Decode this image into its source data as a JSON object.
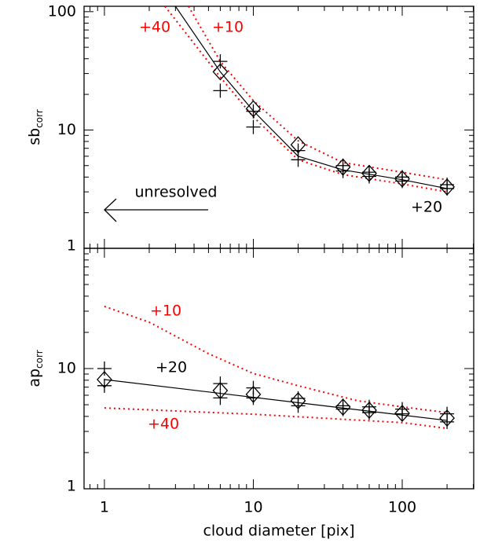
{
  "chart_data": [
    {
      "type": "line",
      "log_x": true,
      "log_y": true,
      "ylabel": "sb",
      "ylabel_sub": "corr",
      "xlim": [
        0.73,
        302
      ],
      "ylim": [
        1,
        111
      ],
      "yticks": [
        1,
        10,
        100
      ],
      "annotations": [
        {
          "text": "+40",
          "color": "#ff0000"
        },
        {
          "text": "+10",
          "color": "#ff0000"
        },
        {
          "text": "+20",
          "color": "#000000"
        },
        {
          "text": "unresolved",
          "color": "#000000"
        }
      ],
      "series": [
        {
          "style": "solid",
          "color": "#000000",
          "x": [
            3,
            6,
            10,
            20,
            40,
            100,
            200
          ],
          "values": [
            111,
            31,
            14.5,
            6,
            4.6,
            3.8,
            3.2
          ]
        },
        {
          "style": "dotted",
          "color": "#ff0000",
          "x": [
            3.67,
            6,
            10,
            20,
            40,
            100,
            200
          ],
          "values": [
            111,
            38,
            17.7,
            8.1,
            5.3,
            4.4,
            3.8
          ]
        },
        {
          "style": "dotted",
          "color": "#ff0000",
          "x": [
            2.55,
            6,
            10,
            20,
            40,
            100,
            200
          ],
          "values": [
            111,
            28,
            12.9,
            5.6,
            4.2,
            3.5,
            3.0
          ]
        },
        {
          "style": "diamond",
          "color": "#000000",
          "x": [
            6,
            10,
            20,
            40,
            60,
            100,
            200
          ],
          "values": [
            31,
            15.1,
            7.5,
            4.86,
            4.3,
            3.86,
            3.3
          ]
        },
        {
          "style": "plus",
          "color": "#000000",
          "x": [
            6,
            10,
            20,
            40,
            60,
            100,
            200
          ],
          "values": [
            38,
            14.4,
            6.7,
            5.0,
            4.4,
            4.0,
            3.45
          ]
        },
        {
          "style": "plus",
          "color": "#000000",
          "x": [
            6,
            10,
            20,
            40,
            60,
            100,
            200
          ],
          "values": [
            21.5,
            10.6,
            5.6,
            4.5,
            4.05,
            3.7,
            3.2
          ]
        }
      ]
    },
    {
      "type": "line",
      "log_x": true,
      "log_y": true,
      "xlabel": "cloud diameter [pix]",
      "ylabel": "ap",
      "ylabel_sub": "corr",
      "xlim": [
        0.73,
        302
      ],
      "ylim": [
        1,
        100
      ],
      "xticks": [
        1,
        10,
        100
      ],
      "yticks": [
        1,
        10
      ],
      "annotations": [
        {
          "text": "+10",
          "color": "#ff0000"
        },
        {
          "text": "+20",
          "color": "#000000"
        },
        {
          "text": "+40",
          "color": "#ff0000"
        }
      ],
      "series": [
        {
          "style": "solid",
          "color": "#000000",
          "x": [
            1,
            200
          ],
          "values": [
            8.1,
            3.7
          ]
        },
        {
          "style": "dotted",
          "color": "#ff0000",
          "x": [
            1,
            2,
            5,
            10,
            20,
            50,
            100,
            200
          ],
          "values": [
            32.9,
            24.3,
            13.3,
            9.1,
            7.2,
            5.4,
            4.8,
            4.3
          ]
        },
        {
          "style": "dotted",
          "color": "#ff0000",
          "x": [
            1,
            10,
            100,
            200
          ],
          "values": [
            4.7,
            4.17,
            3.55,
            3.18
          ]
        },
        {
          "style": "diamond",
          "color": "#000000",
          "x": [
            1,
            6,
            10,
            20,
            40,
            60,
            100,
            200
          ],
          "values": [
            8.1,
            6.56,
            6.1,
            5.4,
            4.78,
            4.5,
            4.24,
            3.87
          ]
        },
        {
          "style": "plus",
          "color": "#000000",
          "x": [
            1,
            6,
            10,
            20,
            40,
            60,
            100,
            200
          ],
          "values": [
            10,
            7.5,
            6.9,
            5.65,
            4.9,
            4.8,
            4.6,
            4.2
          ]
        },
        {
          "style": "plus",
          "color": "#000000",
          "x": [
            1,
            6,
            10,
            20,
            40,
            60,
            100,
            200
          ],
          "values": [
            7.2,
            5.7,
            5.7,
            4.9,
            4.6,
            4.3,
            4.2,
            3.6
          ]
        }
      ]
    }
  ]
}
